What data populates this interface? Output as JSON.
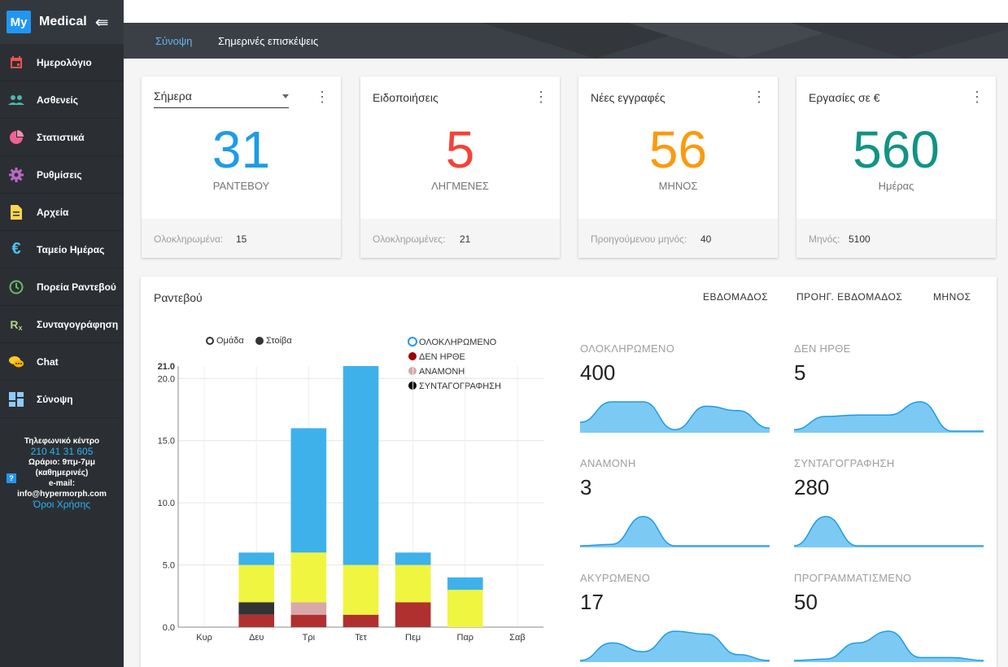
{
  "brand": {
    "badge": "My",
    "name": "Medical",
    "toggle": "⇚"
  },
  "sidebar": {
    "items": [
      {
        "label": "Ημερολόγιο",
        "icon": "calendar-icon",
        "color": "#ef5350"
      },
      {
        "label": "Ασθενείς",
        "icon": "people-icon",
        "color": "#4db6ac"
      },
      {
        "label": "Στατιστικά",
        "icon": "pie-chart-icon",
        "color": "#f06292"
      },
      {
        "label": "Ρυθμίσεις",
        "icon": "gear-icon",
        "color": "#ba68c8"
      },
      {
        "label": "Αρχεία",
        "icon": "file-icon",
        "color": "#ffd54f"
      },
      {
        "label": "Ταμείο Ημέρας",
        "icon": "euro-icon",
        "color": "#4fc3f7"
      },
      {
        "label": "Πορεία Ραντεβού",
        "icon": "clock-icon",
        "color": "#66bb6a"
      },
      {
        "label": "Συνταγογράφηση",
        "icon": "rx-icon",
        "color": "#aed581"
      },
      {
        "label": "Chat",
        "icon": "chat-icon",
        "color": "#ffca28"
      },
      {
        "label": "Σύνοψη",
        "icon": "dashboard-icon",
        "color": "#90caf9"
      }
    ],
    "contact": {
      "title": "Τηλεφωνικό κέντρο",
      "phone": "210 41 31 605",
      "hours": "Ωράριο: 9πμ-7μμ",
      "days": "(καθημερινές)",
      "email_label": "e-mail:",
      "email": "info@hypermorph.com",
      "terms": "Όροι Χρήσης",
      "help": "?"
    }
  },
  "tabs": [
    {
      "label": "Σύνοψη",
      "active": true
    },
    {
      "label": "Σημερινές επισκέψεις",
      "active": false
    }
  ],
  "cards": [
    {
      "title": "Σήμερα",
      "value": "31",
      "unit": "ΡΑΝΤΕΒΟΥ",
      "color": "#1e9be8",
      "foot_label": "Ολοκληρωμένα:",
      "foot_value": "15"
    },
    {
      "title": "Ειδοποιήσεις",
      "value": "5",
      "unit": "ΛΗΓΜΕΝΕΣ",
      "color": "#f44336",
      "foot_label": "Ολοκληρωμένες:",
      "foot_value": "21"
    },
    {
      "title": "Νέες εγγραφές",
      "value": "56",
      "unit": "ΜΗΝΟΣ",
      "color": "#fb9a0e",
      "foot_label": "Προηγούμενου μηνός:",
      "foot_value": "40"
    },
    {
      "title": "Εργασίες σε €",
      "value": "560",
      "unit": "Ημέρας",
      "color": "#119385",
      "foot_label": "Μηνός:",
      "foot_value": "5100"
    }
  ],
  "panel": {
    "title": "Ραντεβού",
    "buttons": [
      "ΕΒΔΟΜΑΔΟΣ",
      "ΠΡΟΗΓ. ΕΒΔΟΜΑΔΟΣ",
      "ΜΗΝΟΣ"
    ],
    "mode_legend": [
      "Ομάδα",
      "Στοίβα"
    ]
  },
  "chart_data": {
    "type": "bar",
    "stacked": true,
    "categories": [
      "Κυρ",
      "Δευ",
      "Τρι",
      "Τετ",
      "Πεμ",
      "Παρ",
      "Σαβ"
    ],
    "series": [
      {
        "name": "ΔΕΝ ΗΡΘΕ",
        "color": "#b03030",
        "values": [
          0,
          1,
          1,
          1,
          2,
          0,
          0
        ]
      },
      {
        "name": "ΣΥΝΤΑΓΟΓΡΑΦΗΣΗ",
        "color": "#333333",
        "values": [
          0,
          1,
          0,
          0,
          0,
          0,
          0
        ]
      },
      {
        "name": "ΑΝΑΜΟΝΗ",
        "color": "#d8a8a8",
        "values": [
          0,
          0,
          1,
          0,
          0,
          0,
          0
        ]
      },
      {
        "name": "",
        "color": "#f0f540",
        "values": [
          0,
          3,
          4,
          4,
          3,
          3,
          0
        ]
      },
      {
        "name": "ΟΛΟΚΛΗΡΩΜΕΝΟ",
        "color": "#3fb1ea",
        "values": [
          0,
          1,
          10,
          16,
          1,
          1,
          0
        ]
      }
    ],
    "legend": [
      {
        "name": "ΟΛΟΚΛΗΡΩΜΕΝΟ",
        "color": "#2196f3",
        "hollow": true
      },
      {
        "name": "ΔΕΝ ΗΡΘΕ",
        "color": "#a00000",
        "hollow": false
      },
      {
        "name": "ΑΝΑΜΟΝΗ",
        "color": "#d8a8a8",
        "hollow": false
      },
      {
        "name": "ΣΥΝΤΑΓΟΓΡΑΦΗΣΗ",
        "color": "#000000",
        "hollow": false
      }
    ],
    "yticks": [
      "0.0",
      "5.0",
      "10.0",
      "15.0",
      "20.0"
    ],
    "ymax_label": "21.0",
    "ylim": [
      0,
      21
    ],
    "grid": true
  },
  "stats": [
    {
      "label": "ΟΛΟΚΛΗΡΩΜΕΝΟ",
      "value": "400",
      "spark": [
        0.3,
        1,
        1,
        0.05,
        0.85,
        0.7,
        0.1
      ]
    },
    {
      "label": "ΔΕΝ ΗΡΘΕ",
      "value": "5",
      "spark": [
        0.05,
        0.5,
        0.55,
        0.55,
        1,
        0,
        0
      ]
    },
    {
      "label": "ΑΝΑΜΟΝΗ",
      "value": "3",
      "spark": [
        0,
        0.05,
        1,
        0,
        0,
        0,
        0
      ]
    },
    {
      "label": "ΣΥΝΤΑΓΟΓΡΑΦΗΣΗ",
      "value": "280",
      "spark": [
        0,
        1,
        0,
        0,
        0,
        0,
        0
      ]
    },
    {
      "label": "ΑΚΥΡΩΜΕΝΟ",
      "value": "17",
      "spark": [
        0,
        0.6,
        0.3,
        1,
        0.9,
        0.2,
        0
      ]
    },
    {
      "label": "ΠΡΟΓΡΑΜΜΑΤΙΣΜΕΝΟ",
      "value": "50",
      "spark": [
        0,
        0.05,
        0.6,
        1,
        0.1,
        0.1,
        0
      ]
    }
  ]
}
